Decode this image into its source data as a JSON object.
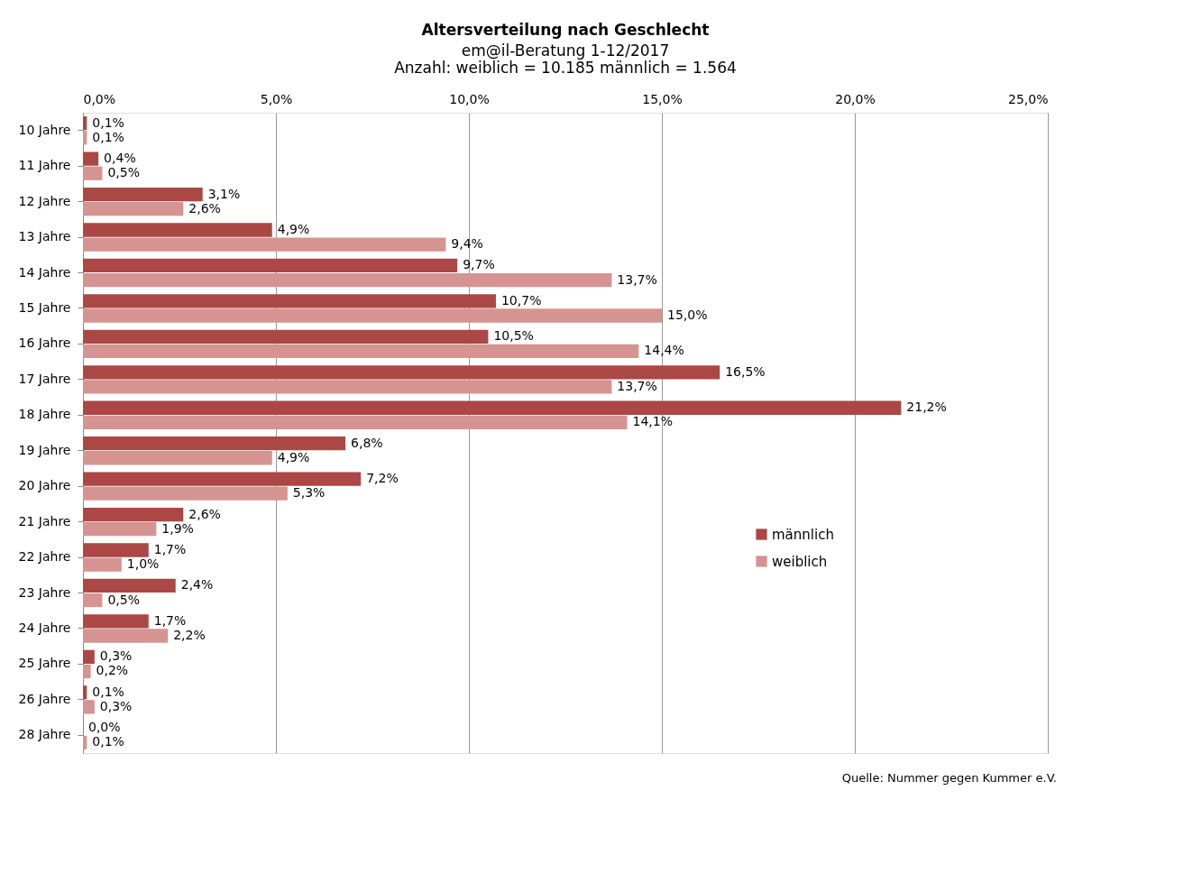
{
  "chart_data": {
    "type": "bar",
    "orientation": "horizontal",
    "title": "Altersverteilung nach Geschlecht",
    "subtitle": "em@il-Beratung 1-12/2017\nAnzahl: weiblich = 10.185   männlich = 1.564",
    "categories": [
      "10 Jahre",
      "11 Jahre",
      "12 Jahre",
      "13 Jahre",
      "14 Jahre",
      "15 Jahre",
      "16 Jahre",
      "17 Jahre",
      "18 Jahre",
      "19 Jahre",
      "20 Jahre",
      "21 Jahre",
      "22 Jahre",
      "23 Jahre",
      "24 Jahre",
      "25 Jahre",
      "26 Jahre",
      "28 Jahre"
    ],
    "series": [
      {
        "name": "männlich",
        "color": "#ab4745",
        "values": [
          0.1,
          0.4,
          3.1,
          4.9,
          9.7,
          10.7,
          10.5,
          16.5,
          21.2,
          6.8,
          7.2,
          2.6,
          1.7,
          2.4,
          1.7,
          0.3,
          0.1,
          0.0
        ],
        "value_labels": [
          "0,1%",
          "0,4%",
          "3,1%",
          "4,9%",
          "9,7%",
          "10,7%",
          "10,5%",
          "16,5%",
          "21,2%",
          "6,8%",
          "7,2%",
          "2,6%",
          "1,7%",
          "2,4%",
          "1,7%",
          "0,3%",
          "0,1%",
          "0,0%"
        ]
      },
      {
        "name": "weiblich",
        "color": "#d59391",
        "values": [
          0.1,
          0.5,
          2.6,
          9.4,
          13.7,
          15.0,
          14.4,
          13.7,
          14.1,
          4.9,
          5.3,
          1.9,
          1.0,
          0.5,
          2.2,
          0.2,
          0.3,
          0.1
        ],
        "value_labels": [
          "0,1%",
          "0,5%",
          "2,6%",
          "9,4%",
          "13,7%",
          "15,0%",
          "14,4%",
          "13,7%",
          "14,1%",
          "4,9%",
          "5,3%",
          "1,9%",
          "1,0%",
          "0,5%",
          "2,2%",
          "0,2%",
          "0,3%",
          "0,1%"
        ]
      }
    ],
    "xlim": [
      0,
      25
    ],
    "xticks": [
      {
        "value": 0,
        "label": "0,0%"
      },
      {
        "value": 5,
        "label": "5,0%"
      },
      {
        "value": 10,
        "label": "10,0%"
      },
      {
        "value": 15,
        "label": "15,0%"
      },
      {
        "value": 20,
        "label": "20,0%"
      },
      {
        "value": 25,
        "label": "25,0%"
      }
    ],
    "grid": "x",
    "legend": "right",
    "annotations": [
      "Quelle: Nummer gegen Kummer e.V."
    ]
  }
}
